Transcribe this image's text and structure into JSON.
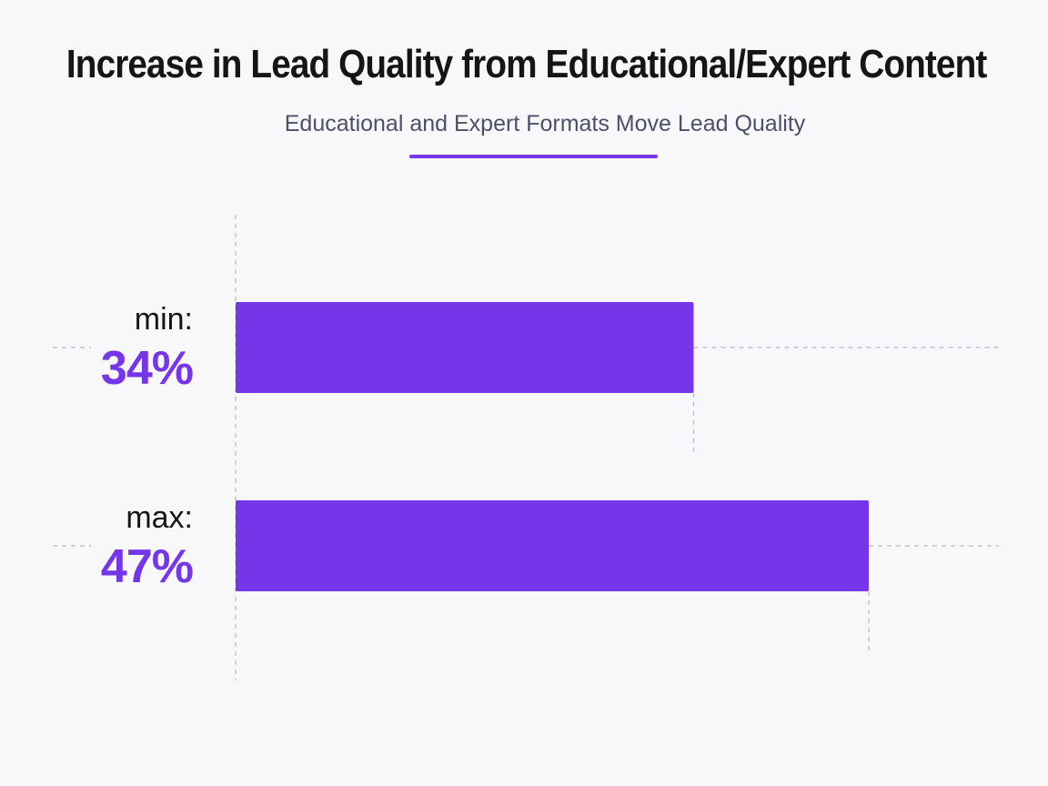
{
  "title": "Increase in Lead Quality from Educational/Expert Content",
  "subtitle": "Educational and Expert Formats Move Lead Quality",
  "colors": {
    "accent": "#7436e8",
    "title": "#151515",
    "subtitle": "#4b5068",
    "gridline": "#b8b8be",
    "background": "#f8f8fb"
  },
  "chart_data": {
    "type": "bar",
    "orientation": "horizontal",
    "title": "Increase in Lead Quality from Educational/Expert Content",
    "subtitle": "Educational and Expert Formats Move Lead Quality",
    "categories": [
      "min:",
      "max:"
    ],
    "values": [
      34,
      47
    ],
    "value_labels": [
      "34%",
      "47%"
    ],
    "unit": "%",
    "xlim": [
      0,
      47
    ],
    "grid": "dashed reference lines at bar ends",
    "legend": "none"
  }
}
